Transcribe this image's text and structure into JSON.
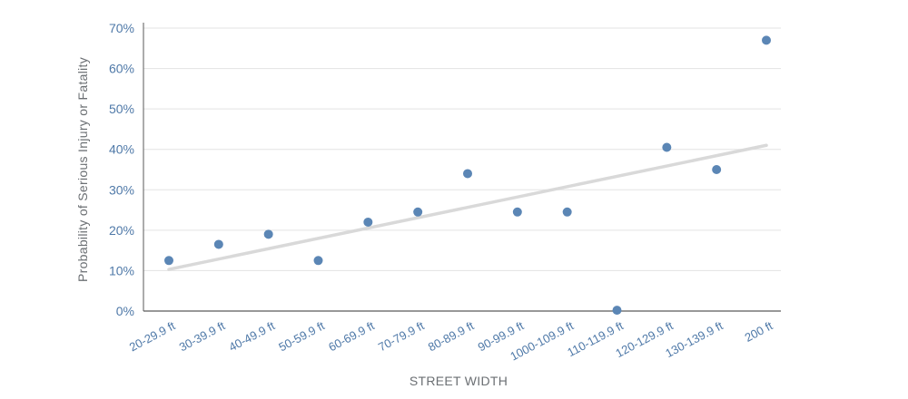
{
  "chart_data": {
    "type": "scatter",
    "title": "",
    "xlabel": "STREET WIDTH",
    "ylabel": "Probability of Serious Injury or Fatality",
    "categories": [
      "20-29.9 ft",
      "30-39.9 ft",
      "40-49.9 ft",
      "50-59.9 ft",
      "60-69.9 ft",
      "70-79.9 ft",
      "80-89.9 ft",
      "90-99.9 ft",
      "1000-109.9 ft",
      "110-119.9 ft",
      "120-129.9 ft",
      "130-139.9 ft",
      "200 ft"
    ],
    "values": [
      12.5,
      16.5,
      19,
      12.5,
      22,
      24.5,
      34,
      24.5,
      24.5,
      0.2,
      40.5,
      35,
      67
    ],
    "trendline": {
      "start": 10.3,
      "end": 41
    },
    "ylim": [
      0,
      70
    ],
    "yticks": [
      0,
      10,
      20,
      30,
      40,
      50,
      60,
      70
    ],
    "ytick_labels": [
      "0%",
      "10%",
      "20%",
      "30%",
      "40%",
      "50%",
      "60%",
      "70%"
    ],
    "grid": true,
    "colors": {
      "point": "#5b86b5",
      "trend": "#d9d9d9",
      "grid": "#e3e3e3",
      "axis": "#5a5a5a",
      "tick_text": "#4f79a8"
    }
  }
}
